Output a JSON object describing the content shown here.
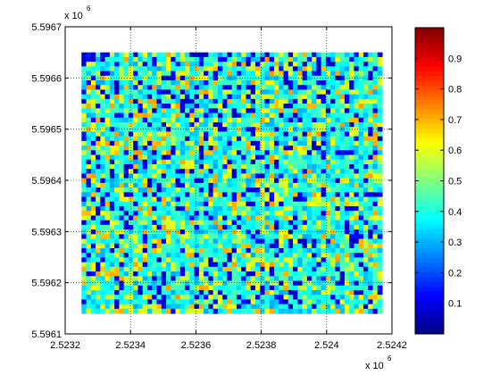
{
  "chart_data": {
    "type": "heatmap",
    "title": "",
    "xlabel": "",
    "ylabel": "",
    "x_exponent_label": "x 10",
    "x_exponent": "6",
    "y_exponent_label": "x 10",
    "y_exponent": "6",
    "xlim": [
      2.5232,
      2.5242
    ],
    "ylim": [
      5.5961,
      5.5967
    ],
    "xticks": [
      "2.5232",
      "2.5234",
      "2.5236",
      "2.5238",
      "2.524",
      "2.5242"
    ],
    "yticks": [
      "5.5961",
      "5.5962",
      "5.5963",
      "5.5964",
      "5.5965",
      "5.5966",
      "5.5967"
    ],
    "grid": true,
    "grid_style": "dotted",
    "data_extent": {
      "x": [
        2.52325,
        2.52417
      ],
      "y": [
        5.59614,
        5.59665
      ]
    },
    "grid_cells": {
      "cols": 64,
      "rows": 56
    },
    "value_distribution": "noisy random field, values mostly 0.05–0.65, dominated by cyan ~0.4, with yellow ~0.55–0.65, dark blue ~0.05–0.15 and sparse orange ~0.7",
    "colormap": "jet",
    "colorbar": {
      "range": [
        0,
        1
      ],
      "ticks": [
        "0.1",
        "0.2",
        "0.3",
        "0.4",
        "0.5",
        "0.6",
        "0.7",
        "0.8",
        "0.9"
      ]
    }
  }
}
